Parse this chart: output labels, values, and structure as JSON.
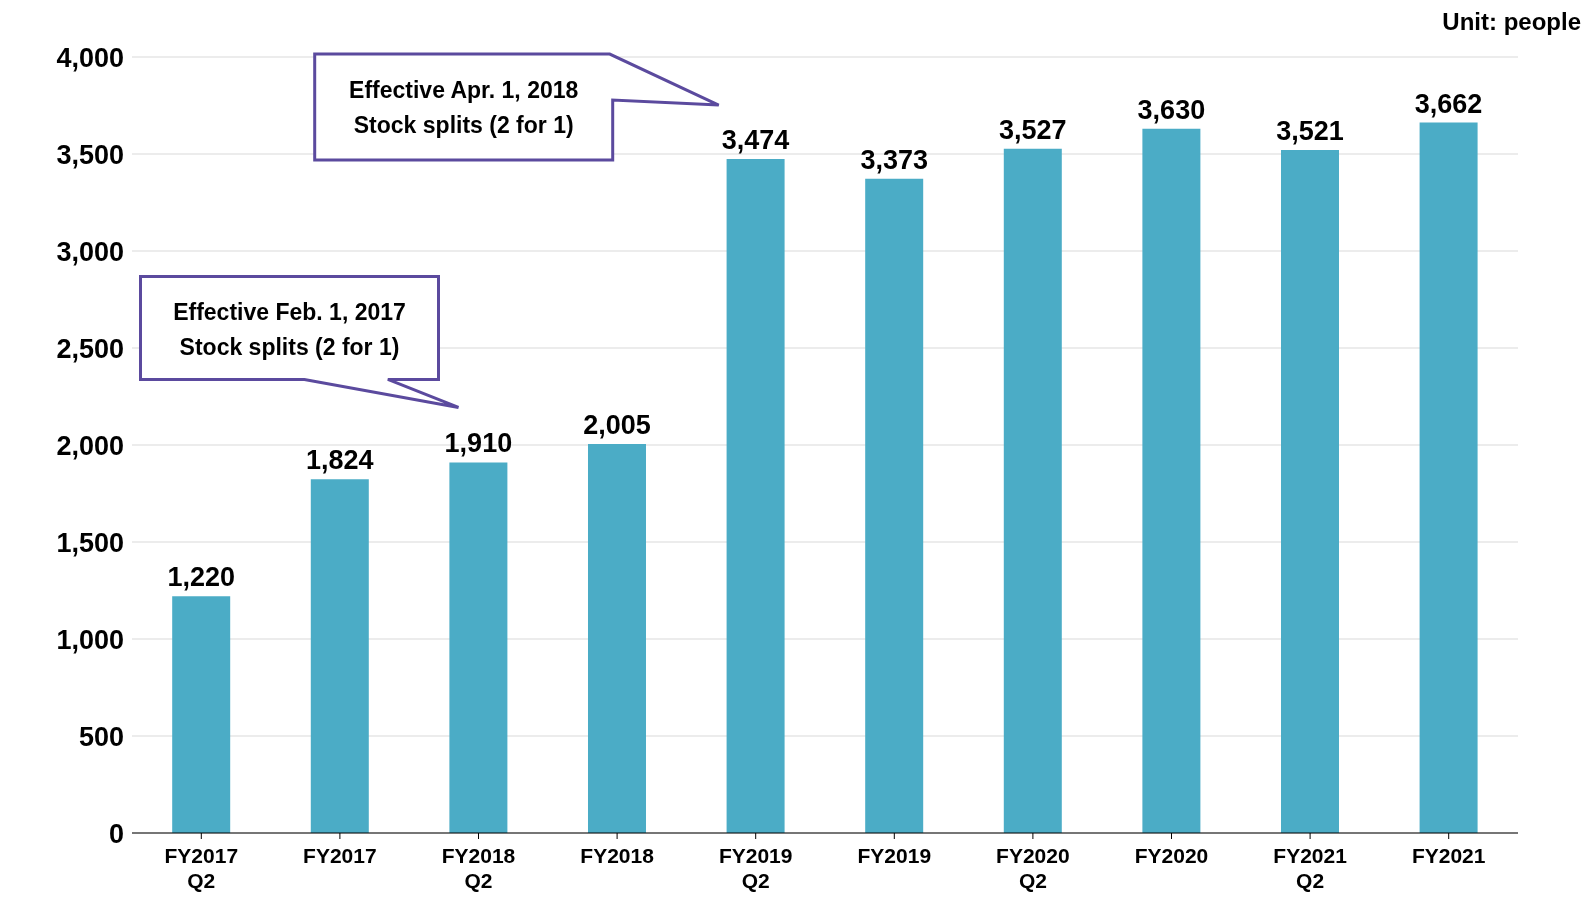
{
  "chart_data": {
    "type": "bar",
    "categories": [
      "FY2017 Q2",
      "FY2017",
      "FY2018 Q2",
      "FY2018",
      "FY2019 Q2",
      "FY2019",
      "FY2020 Q2",
      "FY2020",
      "FY2021 Q2",
      "FY2021"
    ],
    "values": [
      1220,
      1824,
      1910,
      2005,
      3474,
      3373,
      3527,
      3630,
      3521,
      3662
    ],
    "color": "#4bacc6",
    "ylim": [
      0,
      4000
    ],
    "yticks": [
      {
        "value": 0,
        "label": "0"
      },
      {
        "value": 500,
        "label": "500"
      },
      {
        "value": 1000,
        "label": "1,000"
      },
      {
        "value": 1500,
        "label": "1,500"
      },
      {
        "value": 2000,
        "label": "2,000"
      },
      {
        "value": 2500,
        "label": "2,500"
      },
      {
        "value": 3000,
        "label": "3,000"
      },
      {
        "value": 3500,
        "label": "3,500"
      },
      {
        "value": 4000,
        "label": "4,000"
      }
    ],
    "value_labels": [
      "1,220",
      "1,824",
      "1,910",
      "2,005",
      "3,474",
      "3,373",
      "3,527",
      "3,630",
      "3,521",
      "3,662"
    ],
    "grid": "y",
    "legend": false,
    "annotations": [
      "Unit: people",
      "Effective Feb. 1, 2017\nStock splits (2 for 1)",
      "Effective Apr. 1, 2018\nStock splits (2 for 1)"
    ]
  }
}
